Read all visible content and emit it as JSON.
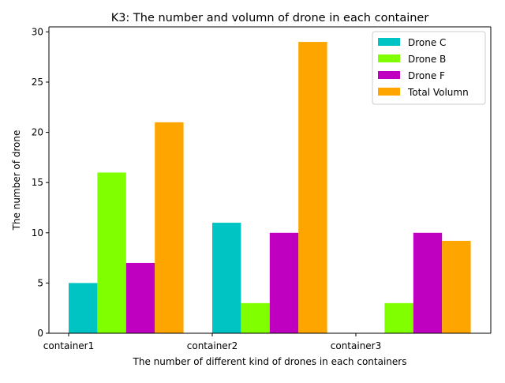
{
  "chart_data": {
    "type": "bar",
    "title": "K3: The number and volumn of drone in each container",
    "xlabel": "The number of different kind of drones in each containers",
    "ylabel": "The number of drone",
    "categories": [
      "container1",
      "container2",
      "container3"
    ],
    "series": [
      {
        "name": "Drone C",
        "color": "#00c4c4",
        "values": [
          5,
          11,
          0
        ]
      },
      {
        "name": "Drone B",
        "color": "#80ff00",
        "values": [
          16,
          3,
          3
        ]
      },
      {
        "name": "Drone F",
        "color": "#c000c0",
        "values": [
          7,
          10,
          10
        ]
      },
      {
        "name": "Total Volumn",
        "color": "#ffa500",
        "values": [
          21,
          29,
          9.2
        ]
      }
    ],
    "ylim": [
      0,
      30.5
    ],
    "yticks": [
      0,
      5,
      10,
      15,
      20,
      25,
      30
    ],
    "grid": false,
    "legend_position": "top-right"
  }
}
